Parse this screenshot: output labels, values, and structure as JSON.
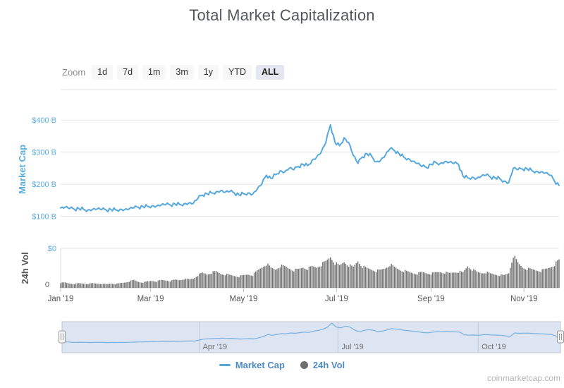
{
  "page": {
    "title": "Total Market Capitalization",
    "watermark": "coinmarketcap.com"
  },
  "toolbar": {
    "zoom_label": "Zoom",
    "buttons": [
      "1d",
      "7d",
      "1m",
      "3m",
      "1y",
      "YTD",
      "ALL"
    ],
    "active": "ALL"
  },
  "legend": {
    "items": [
      {
        "label": "Market Cap",
        "marker": "line",
        "color": "#57A8DC"
      },
      {
        "label": "24h Vol",
        "marker": "circle",
        "color": "#6F6F6F"
      }
    ]
  },
  "colors": {
    "line_blue": "#57A8DC",
    "axis_label_blue": "#59AEDD",
    "volume_gray": "#757575",
    "axis_label_gray": "#666666",
    "xaxis_label_gray": "#555555",
    "grid": "#E7E7E7",
    "axis_line": "#CDD3DC",
    "nav_mask": "rgba(102,133,194,0.22)",
    "nav_line": "#7AB0DD",
    "nav_grid": "#C3C9D4",
    "nav_label": "#707070"
  },
  "chart_data": [
    {
      "type": "line",
      "name": "Market Cap",
      "ylabel": "Market Cap",
      "unit": "billion USD",
      "ylim": [
        0,
        495
      ],
      "yticks": [
        {
          "label": "$400 B",
          "value": 400
        },
        {
          "label": "$300 B",
          "value": 300
        },
        {
          "label": "$200 B",
          "value": 200
        },
        {
          "label": "$100 B",
          "value": 100
        },
        {
          "label": "$0",
          "value": 0
        }
      ],
      "x_start_day": 0,
      "x_day_step": 3,
      "x_epoch": "2019-01-01",
      "xticks": [
        {
          "label": "Jan '19",
          "day": 0
        },
        {
          "label": "Mar '19",
          "day": 59
        },
        {
          "label": "May '19",
          "day": 120
        },
        {
          "label": "Jul '19",
          "day": 181
        },
        {
          "label": "Sep '19",
          "day": 243
        },
        {
          "label": "Nov '19",
          "day": 304
        }
      ],
      "values": [
        126,
        128,
        124,
        122,
        124,
        122,
        120,
        122,
        123,
        121,
        119,
        121,
        120,
        122,
        121,
        123,
        126,
        128,
        130,
        131,
        133,
        132,
        135,
        136,
        135,
        138,
        137,
        139,
        141,
        140,
        155,
        166,
        170,
        173,
        176,
        180,
        175,
        177,
        172,
        167,
        170,
        173,
        169,
        185,
        200,
        228,
        218,
        230,
        242,
        238,
        250,
        245,
        255,
        262,
        258,
        275,
        285,
        300,
        330,
        385,
        330,
        320,
        345,
        330,
        290,
        265,
        285,
        295,
        288,
        270,
        275,
        290,
        310,
        305,
        295,
        285,
        280,
        272,
        265,
        255,
        252,
        262,
        268,
        265,
        270,
        268,
        265,
        262,
        225,
        220,
        222,
        218,
        225,
        228,
        222,
        220,
        218,
        210,
        205,
        250,
        245,
        247,
        248,
        243,
        240,
        238,
        235,
        228,
        210,
        196
      ]
    },
    {
      "type": "bar",
      "name": "24h Vol",
      "ylabel": "24h Vol",
      "unit": "billion USD",
      "ylim": [
        0,
        100
      ],
      "yticks": [
        {
          "label": "0",
          "value": 0
        }
      ],
      "mc_axis_zero_label": "$0",
      "x_start_day": 0,
      "x_day_step": 3,
      "values": [
        14,
        15,
        12,
        11,
        13,
        12,
        11,
        13,
        12,
        11,
        10,
        12,
        11,
        13,
        15,
        18,
        22,
        17,
        15,
        18,
        20,
        18,
        22,
        21,
        19,
        23,
        22,
        25,
        24,
        26,
        36,
        42,
        38,
        43,
        46,
        40,
        38,
        36,
        34,
        32,
        35,
        38,
        36,
        48,
        58,
        68,
        56,
        52,
        62,
        60,
        55,
        50,
        52,
        58,
        54,
        60,
        58,
        66,
        74,
        88,
        70,
        62,
        74,
        64,
        58,
        76,
        60,
        55,
        52,
        48,
        50,
        56,
        66,
        58,
        52,
        48,
        45,
        42,
        40,
        44,
        42,
        40,
        43,
        45,
        43,
        41,
        44,
        46,
        43,
        62,
        52,
        45,
        42,
        44,
        40,
        38,
        36,
        35,
        42,
        92,
        70,
        58,
        54,
        52,
        50,
        48,
        52,
        58,
        66,
        78
      ]
    },
    {
      "type": "navigator",
      "source_series": "Market Cap",
      "range_selected": "full",
      "xticks": [
        {
          "label": "Apr '19",
          "day": 90
        },
        {
          "label": "Jul '19",
          "day": 181
        },
        {
          "label": "Oct '19",
          "day": 273
        }
      ]
    }
  ]
}
